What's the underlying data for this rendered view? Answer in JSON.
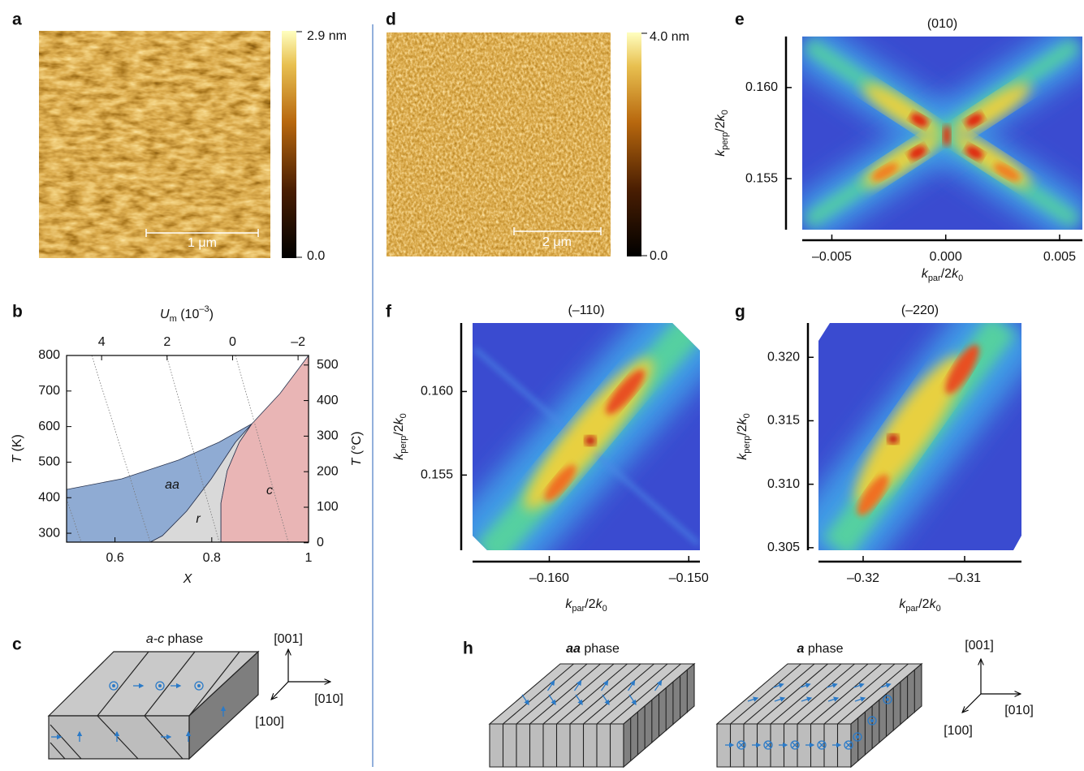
{
  "panels": {
    "a": {
      "letter": "a",
      "colorbar_max": "2.9 nm",
      "colorbar_min": "0.0",
      "scale_bar": "1 μm"
    },
    "b": {
      "letter": "b",
      "xlim": [
        0.5,
        1
      ],
      "xticks": [
        0.6,
        0.8,
        1
      ],
      "xlabel": "X",
      "ylim": [
        275,
        800
      ],
      "yticks": [
        300,
        400,
        500,
        600,
        700,
        800
      ],
      "ylabel": [
        "T",
        " (K)"
      ],
      "y2lim": [
        1.85,
        526.85
      ],
      "y2ticks": [
        0,
        100,
        200,
        300,
        400,
        500
      ],
      "y2label": [
        "T",
        " (°C)"
      ],
      "x2lim": [
        5.07,
        -2.32
      ],
      "x2ticks": [
        4,
        2,
        0,
        {
          "value": -2,
          "label": "–2"
        }
      ],
      "x2label": [
        "U",
        "m",
        " (10",
        "–3",
        ")"
      ],
      "regions": [
        {
          "name": "aa",
          "color": "#8fabd3",
          "x": [
            0.5,
            0.614,
            0.732,
            0.815,
            0.883,
            0.849,
            0.799,
            0.748,
            0.698,
            0.673,
            0.5
          ],
          "y": [
            423,
            453,
            506,
            556,
            608,
            556,
            453,
            362,
            293,
            275,
            275
          ]
        },
        {
          "name": "r",
          "color": "#d9d9d9",
          "x": [
            0.883,
            0.849,
            0.799,
            0.748,
            0.698,
            0.673,
            0.819,
            0.819,
            0.832,
            0.857
          ],
          "y": [
            608,
            556,
            453,
            362,
            293,
            275,
            275,
            385,
            476,
            556
          ]
        },
        {
          "name": "c",
          "color": "#e9b5b5",
          "x": [
            0.883,
            0.941,
            1,
            1,
            0.819,
            0.819,
            0.832,
            0.857
          ],
          "y": [
            608,
            693,
            800,
            275,
            275,
            385,
            476,
            556
          ]
        }
      ]
    },
    "c": {
      "letter": "c",
      "title": [
        "a-c",
        " phase"
      ],
      "axes": [
        "[001]",
        "[010]",
        "[100]"
      ]
    },
    "d": {
      "letter": "d",
      "colorbar_max": "4.0 nm",
      "colorbar_min": "0.0",
      "scale_bar": "2 μm"
    },
    "e": {
      "letter": "e",
      "title": "(010)",
      "xlim": [
        -0.0063,
        0.006
      ],
      "xticks": [
        {
          "value": -0.005,
          "label": "–0.005"
        },
        {
          "value": 0,
          "label": "0.000"
        },
        0.005
      ],
      "ylim": [
        0.1522,
        0.1628
      ],
      "yticks": [
        {
          "value": 0.16,
          "label": "0.160"
        },
        0.155
      ],
      "xlabel": [
        "k",
        "par",
        "/2",
        "k",
        "0"
      ],
      "ylabel": [
        "k",
        "perp",
        "/2",
        "k",
        "0"
      ]
    },
    "f": {
      "letter": "f",
      "title": "(–110)",
      "xlim": [
        -0.1655,
        -0.1492
      ],
      "xticks": [
        {
          "value": -0.16,
          "label": "–0.160"
        },
        {
          "value": -0.15,
          "label": "–0.150"
        }
      ],
      "ylim": [
        0.1505,
        0.1641
      ],
      "yticks": [
        {
          "value": 0.16,
          "label": "0.160"
        },
        0.155
      ],
      "xlabel": [
        "k",
        "par",
        "/2",
        "k",
        "0"
      ],
      "ylabel": [
        "k",
        "perp",
        "/2",
        "k",
        "0"
      ]
    },
    "g": {
      "letter": "g",
      "title": "(–220)",
      "xlim": [
        -0.3244,
        -0.3044
      ],
      "xticks": [
        {
          "value": -0.32,
          "label": "–0.32"
        },
        {
          "value": -0.31,
          "label": "–0.31"
        }
      ],
      "ylim": [
        0.3048,
        0.3227
      ],
      "yticks": [
        {
          "value": 0.32,
          "label": "0.320"
        },
        0.315,
        {
          "value": 0.31,
          "label": "0.310"
        },
        0.305
      ],
      "xlabel": [
        "k",
        "par",
        "/2",
        "k",
        "0"
      ],
      "ylabel": [
        "k",
        "perp",
        "/2",
        "k",
        "0"
      ]
    },
    "h": {
      "letter": "h",
      "titles": [
        [
          "aa",
          " phase"
        ],
        [
          "a",
          " phase"
        ]
      ],
      "axes": [
        "[001]",
        "[010]",
        "[100]"
      ]
    }
  }
}
